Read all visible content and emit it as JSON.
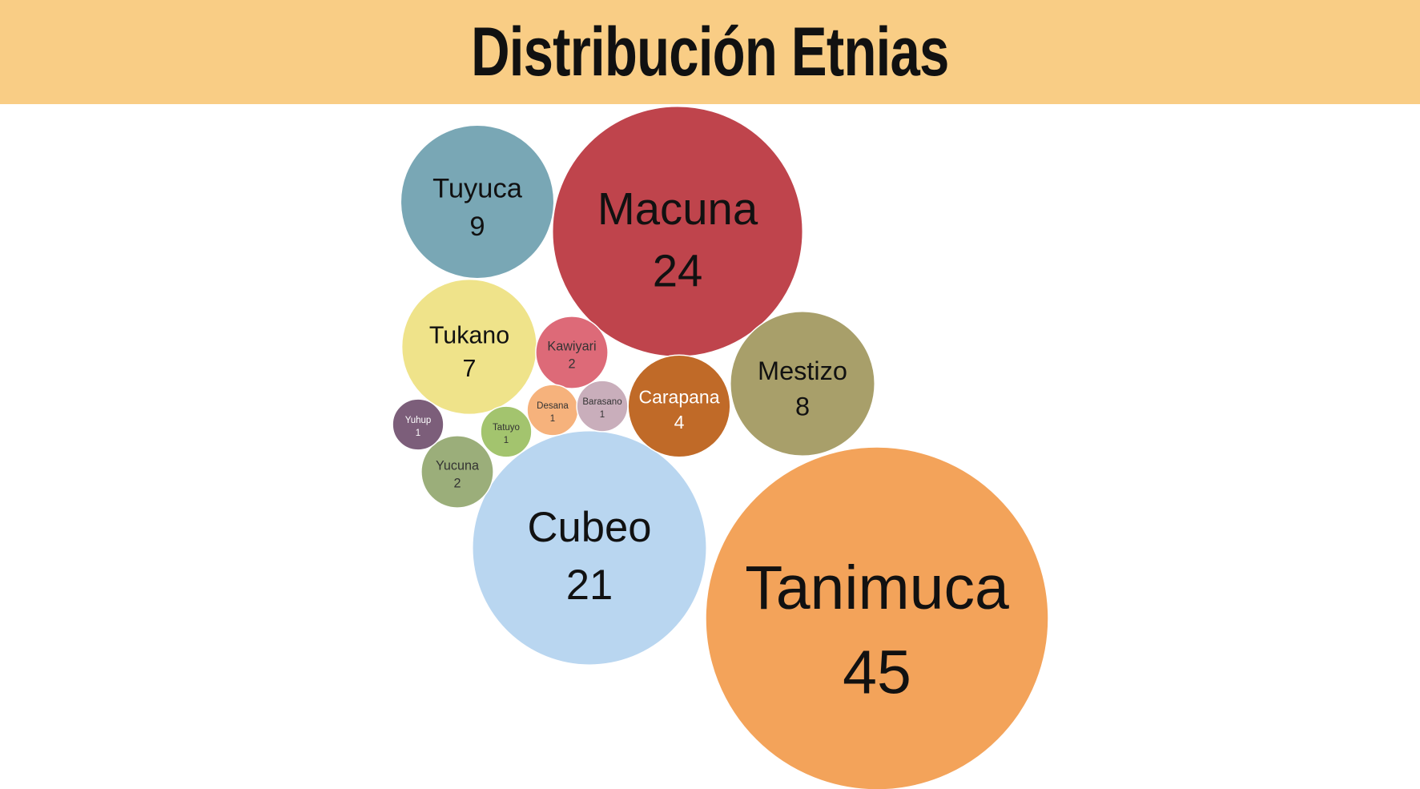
{
  "title": "Distribución Etnias",
  "chart_data": {
    "type": "bubble",
    "title": "Distribución Etnias",
    "series": [
      {
        "name": "Tanimuca",
        "value": 45,
        "color": "#f3a35a",
        "text_color": "#111111"
      },
      {
        "name": "Macuna",
        "value": 24,
        "color": "#bf444c",
        "text_color": "#111111"
      },
      {
        "name": "Cubeo",
        "value": 21,
        "color": "#b9d6f0",
        "text_color": "#111111"
      },
      {
        "name": "Tuyuca",
        "value": 9,
        "color": "#79a7b5",
        "text_color": "#111111"
      },
      {
        "name": "Mestizo",
        "value": 8,
        "color": "#a89f6a",
        "text_color": "#111111"
      },
      {
        "name": "Tukano",
        "value": 7,
        "color": "#efe38a",
        "text_color": "#111111"
      },
      {
        "name": "Carapana",
        "value": 4,
        "color": "#c06a28",
        "text_color": "#ffffff"
      },
      {
        "name": "Kawiyari",
        "value": 2,
        "color": "#dd6a78",
        "text_color": "#333333"
      },
      {
        "name": "Yucuna",
        "value": 2,
        "color": "#9bae7a",
        "text_color": "#333333"
      },
      {
        "name": "Desana",
        "value": 1,
        "color": "#f6b27c",
        "text_color": "#333333"
      },
      {
        "name": "Barasano",
        "value": 1,
        "color": "#c9aebb",
        "text_color": "#333333"
      },
      {
        "name": "Tatuyo",
        "value": 1,
        "color": "#a3c46e",
        "text_color": "#333333"
      },
      {
        "name": "Yuhup",
        "value": 1,
        "color": "#7c5e7a",
        "text_color": "#ffffff"
      }
    ]
  }
}
